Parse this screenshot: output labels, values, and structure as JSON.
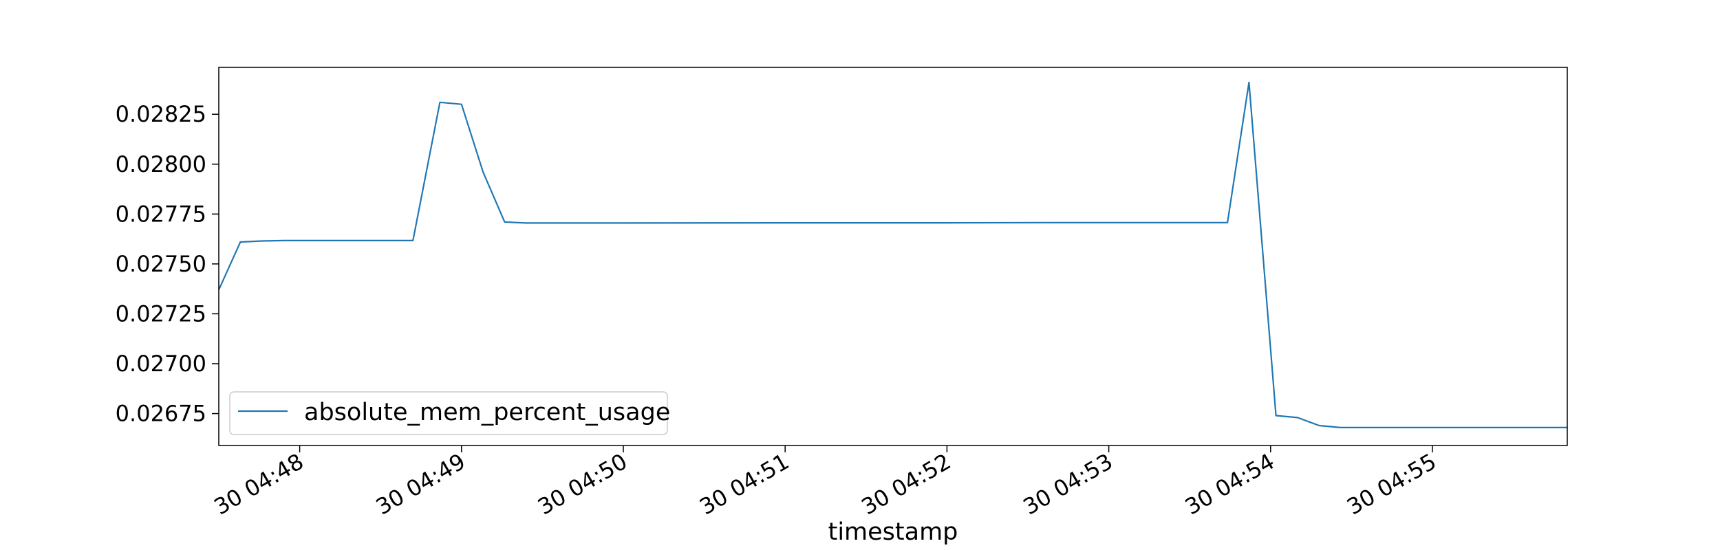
{
  "chart_data": {
    "type": "line",
    "title": "",
    "xlabel": "timestamp",
    "ylabel": "",
    "x_unit": "minutes",
    "xlim": [
      "04:47:30",
      "04:55:50"
    ],
    "ylim": [
      0.02659,
      0.028485
    ],
    "x_ticks": [
      {
        "value": "04:48:00",
        "label": "30 04:48"
      },
      {
        "value": "04:49:00",
        "label": "30 04:49"
      },
      {
        "value": "04:50:00",
        "label": "30 04:50"
      },
      {
        "value": "04:51:00",
        "label": "30 04:51"
      },
      {
        "value": "04:52:00",
        "label": "30 04:52"
      },
      {
        "value": "04:53:00",
        "label": "30 04:53"
      },
      {
        "value": "04:54:00",
        "label": "30 04:54"
      },
      {
        "value": "04:55:00",
        "label": "30 04:55"
      }
    ],
    "y_ticks": [
      {
        "value": 0.02675,
        "label": "0.02675"
      },
      {
        "value": 0.027,
        "label": "0.02700"
      },
      {
        "value": 0.02725,
        "label": "0.02725"
      },
      {
        "value": 0.0275,
        "label": "0.02750"
      },
      {
        "value": 0.02775,
        "label": "0.02775"
      },
      {
        "value": 0.028,
        "label": "0.02800"
      },
      {
        "value": 0.02825,
        "label": "0.02825"
      }
    ],
    "grid": false,
    "legend_position": "lower-left",
    "series": [
      {
        "name": "absolute_mem_percent_usage",
        "color": "#1f77b4",
        "points": [
          {
            "x": "04:47:30",
            "y": 0.02737
          },
          {
            "x": "04:47:38",
            "y": 0.02761
          },
          {
            "x": "04:47:46",
            "y": 0.027615
          },
          {
            "x": "04:47:54",
            "y": 0.027617
          },
          {
            "x": "04:48:02",
            "y": 0.027617
          },
          {
            "x": "04:48:42",
            "y": 0.027617
          },
          {
            "x": "04:48:52",
            "y": 0.02831
          },
          {
            "x": "04:49:00",
            "y": 0.0283
          },
          {
            "x": "04:49:08",
            "y": 0.02796
          },
          {
            "x": "04:49:16",
            "y": 0.02771
          },
          {
            "x": "04:49:24",
            "y": 0.027705
          },
          {
            "x": "04:50:00",
            "y": 0.027705
          },
          {
            "x": "04:51:00",
            "y": 0.027706
          },
          {
            "x": "04:52:00",
            "y": 0.027706
          },
          {
            "x": "04:52:40",
            "y": 0.027707
          },
          {
            "x": "04:53:00",
            "y": 0.027707
          },
          {
            "x": "04:53:20",
            "y": 0.027707
          },
          {
            "x": "04:53:44",
            "y": 0.027707
          },
          {
            "x": "04:53:52",
            "y": 0.02841
          },
          {
            "x": "04:54:02",
            "y": 0.02674
          },
          {
            "x": "04:54:10",
            "y": 0.02673
          },
          {
            "x": "04:54:18",
            "y": 0.02669
          },
          {
            "x": "04:54:26",
            "y": 0.02668
          },
          {
            "x": "04:55:00",
            "y": 0.02668
          },
          {
            "x": "04:55:50",
            "y": 0.02668
          }
        ]
      }
    ]
  }
}
